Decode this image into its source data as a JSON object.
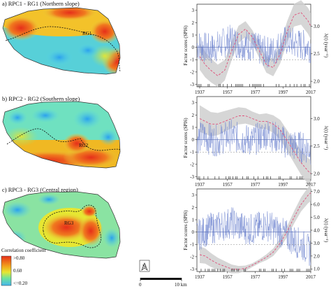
{
  "panels": [
    {
      "title": "a) RPC1 - RG1 (Northern slope)",
      "region_label": "RG1"
    },
    {
      "title": "b) RPC2 - RG2 (Southern slope)",
      "region_label": "RG2"
    },
    {
      "title": "c) RPC3 - RG3 (Central region)",
      "region_label": "RG3"
    }
  ],
  "legend": {
    "title": "Correlation coefficient",
    "values": [
      ">0.80",
      "0.60",
      "<=0.20"
    ]
  },
  "scalebar": {
    "zero": "0",
    "end": "10 km"
  },
  "north": "N",
  "colors": {
    "map_high": "#e62f1a",
    "map_mid": "#e6e632",
    "map_low": "#4fc3f7",
    "band": "#cfcfcf",
    "trend": "#e0507a",
    "series": "#7b8fd4"
  },
  "chart_data": [
    {
      "type": "line",
      "title": "",
      "ylabel": "Factor scores (SPI6)",
      "y2label": "λ(t) (year⁻¹)",
      "xlim": [
        1935,
        2017
      ],
      "ylim": [
        -3.2,
        3.5
      ],
      "y2lim": [
        1.9,
        3.4
      ],
      "xticks": [
        1937,
        1957,
        1977,
        1997,
        2017
      ],
      "yticks": [
        -3,
        -2,
        -1,
        0,
        1,
        2,
        3
      ],
      "y2ticks": [
        2.0,
        2.5,
        3.0
      ],
      "series": [
        {
          "x": [
            1935,
            1940,
            1945,
            1950,
            1955,
            1960,
            1965,
            1970,
            1975,
            1980,
            1985,
            1990,
            1995,
            2000,
            2005,
            2010,
            2015,
            2017
          ],
          "values": [
            0.2,
            0.0,
            -0.2,
            0.1,
            0.4,
            0.6,
            0.3,
            0.2,
            0.1,
            -0.2,
            -0.4,
            -0.3,
            0.2,
            0.6,
            0.3,
            0.2,
            0.1,
            0.0
          ]
        }
      ],
      "rate": {
        "x": [
          1937,
          1941,
          1945,
          1950,
          1955,
          1960,
          1965,
          1970,
          1975,
          1980,
          1985,
          1990,
          1995,
          2000,
          2005,
          2010,
          2015,
          2017
        ],
        "values": [
          2.45,
          2.3,
          2.2,
          2.1,
          2.2,
          2.55,
          2.85,
          2.95,
          2.8,
          2.55,
          2.3,
          2.25,
          2.5,
          2.9,
          3.2,
          3.25,
          3.1,
          3.0
        ]
      }
    },
    {
      "type": "line",
      "title": "",
      "ylabel": "Factor scores (SPI6)",
      "y2label": "λ(t) (year⁻¹)",
      "xlim": [
        1935,
        2017
      ],
      "ylim": [
        -3.2,
        3.5
      ],
      "y2lim": [
        1.9,
        3.4
      ],
      "xticks": [
        1937,
        1957,
        1977,
        1997,
        2017
      ],
      "yticks": [
        -3,
        -2,
        -1,
        0,
        1,
        2,
        3
      ],
      "y2ticks": [
        2.0,
        2.5,
        3.0
      ],
      "series": [
        {
          "x": [
            1935,
            1940,
            1945,
            1950,
            1955,
            1960,
            1965,
            1970,
            1975,
            1980,
            1985,
            1990,
            1995,
            2000,
            2005,
            2010,
            2015,
            2017
          ],
          "values": [
            0.1,
            0.3,
            0.0,
            -0.1,
            0.2,
            0.4,
            0.1,
            0.0,
            -0.1,
            0.2,
            0.5,
            0.3,
            0.0,
            -0.3,
            -0.5,
            -0.6,
            -0.7,
            -0.8
          ]
        }
      ],
      "rate": {
        "x": [
          1937,
          1941,
          1945,
          1950,
          1955,
          1960,
          1965,
          1970,
          1975,
          1980,
          1985,
          1990,
          1995,
          2000,
          2005,
          2010,
          2015,
          2017
        ],
        "values": [
          3.0,
          2.95,
          2.9,
          2.9,
          2.95,
          3.0,
          3.05,
          3.05,
          3.0,
          2.95,
          2.95,
          2.9,
          2.8,
          2.6,
          2.4,
          2.2,
          2.05,
          2.0
        ]
      }
    },
    {
      "type": "line",
      "title": "",
      "ylabel": "Factor scores (SPI6)",
      "y2label": "λ(t) (year⁻¹)",
      "xlim": [
        1935,
        2017
      ],
      "ylim": [
        -3.2,
        3.5
      ],
      "y2lim": [
        0.8,
        7.2
      ],
      "xticks": [
        1937,
        1957,
        1977,
        1997,
        2017
      ],
      "yticks": [
        -3,
        -2,
        -1,
        0,
        1,
        2,
        3
      ],
      "y2ticks": [
        1.0,
        2.0,
        3.0,
        4.0,
        5.0,
        6.0,
        7.0
      ],
      "series": [
        {
          "x": [
            1935,
            1940,
            1945,
            1950,
            1955,
            1960,
            1965,
            1970,
            1975,
            1980,
            1985,
            1990,
            1995,
            2000,
            2005,
            2010,
            2015,
            2017
          ],
          "values": [
            -0.3,
            0.0,
            0.3,
            0.4,
            0.6,
            0.8,
            0.5,
            0.3,
            0.2,
            0.4,
            0.6,
            0.3,
            0.0,
            -0.3,
            -0.7,
            -1.0,
            -1.4,
            -1.6
          ]
        }
      ],
      "rate": {
        "x": [
          1937,
          1941,
          1945,
          1950,
          1955,
          1960,
          1965,
          1970,
          1975,
          1980,
          1985,
          1990,
          1995,
          2000,
          2005,
          2010,
          2015,
          2017
        ],
        "values": [
          2.1,
          2.0,
          1.7,
          1.4,
          1.2,
          1.0,
          0.95,
          1.05,
          1.3,
          1.6,
          1.9,
          2.3,
          3.0,
          3.9,
          5.0,
          6.0,
          6.7,
          6.9
        ]
      }
    }
  ]
}
